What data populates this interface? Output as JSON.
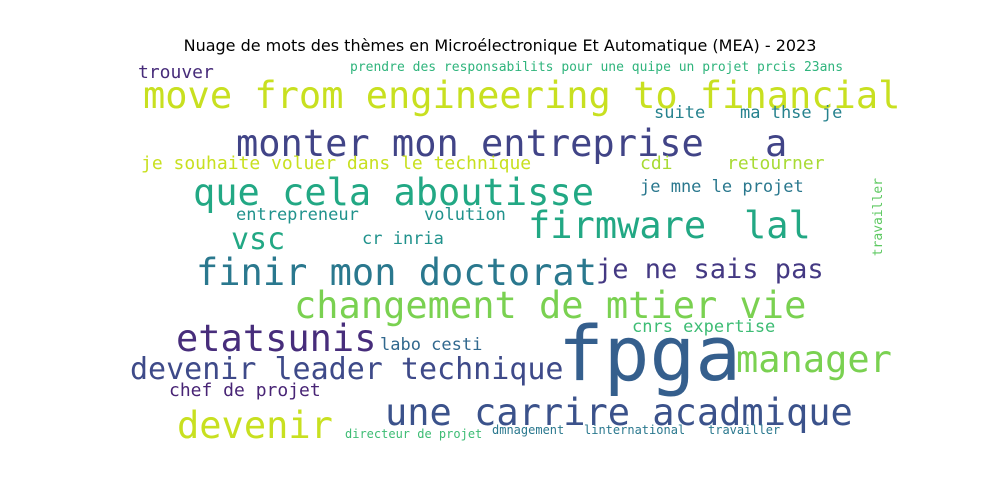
{
  "title": "Nuage de mots des thèmes en Microélectronique Et Automatique (MEA) - 2023",
  "words": [
    {
      "text": "trouver",
      "color": "#472c7a"
    },
    {
      "text": "prendre des responsabilits pour une quipe un projet prcis 23ans",
      "color": "#2fb47c"
    },
    {
      "text": "move from engineering to financial",
      "color": "#c8e020"
    },
    {
      "text": "suite",
      "color": "#26828e"
    },
    {
      "text": "ma thse je",
      "color": "#26828e"
    },
    {
      "text": "monter mon entreprise",
      "color": "#414487"
    },
    {
      "text": "a",
      "color": "#414487"
    },
    {
      "text": "je souhaite voluer dans le technique",
      "color": "#c8e020"
    },
    {
      "text": "cdi",
      "color": "#a8db34"
    },
    {
      "text": "retourner",
      "color": "#a8db34"
    },
    {
      "text": "que cela aboutisse",
      "color": "#22a884"
    },
    {
      "text": "je mne le projet",
      "color": "#2a788e"
    },
    {
      "text": "travailler",
      "color": "#5ec962"
    },
    {
      "text": "entrepreneur",
      "color": "#20928c"
    },
    {
      "text": "volution",
      "color": "#20928c"
    },
    {
      "text": "firmware",
      "color": "#22a884"
    },
    {
      "text": "lal",
      "color": "#22a884"
    },
    {
      "text": "vsc",
      "color": "#22a884"
    },
    {
      "text": "cr inria",
      "color": "#20928c"
    },
    {
      "text": "finir mon doctorat",
      "color": "#2a788e"
    },
    {
      "text": "je ne sais pas",
      "color": "#443983"
    },
    {
      "text": "changement de mtier vie",
      "color": "#7ad151"
    },
    {
      "text": "cnrs expertise",
      "color": "#3dbc74"
    },
    {
      "text": "etatsunis",
      "color": "#472d7b"
    },
    {
      "text": "labo cesti",
      "color": "#31688e"
    },
    {
      "text": "fpga",
      "color": "#355f8d"
    },
    {
      "text": "manager",
      "color": "#7ad151"
    },
    {
      "text": "devenir leader technique",
      "color": "#3e4a89"
    },
    {
      "text": "chef de projet",
      "color": "#482475"
    },
    {
      "text": "une carrire acadmique",
      "color": "#3b528b"
    },
    {
      "text": "devenir",
      "color": "#c8e020"
    },
    {
      "text": "directeur de projet",
      "color": "#3dbc74"
    },
    {
      "text": "dmnagement",
      "color": "#2a788e"
    },
    {
      "text": "linternational",
      "color": "#2a788e"
    },
    {
      "text": "travailler",
      "color": "#2a788e"
    }
  ]
}
